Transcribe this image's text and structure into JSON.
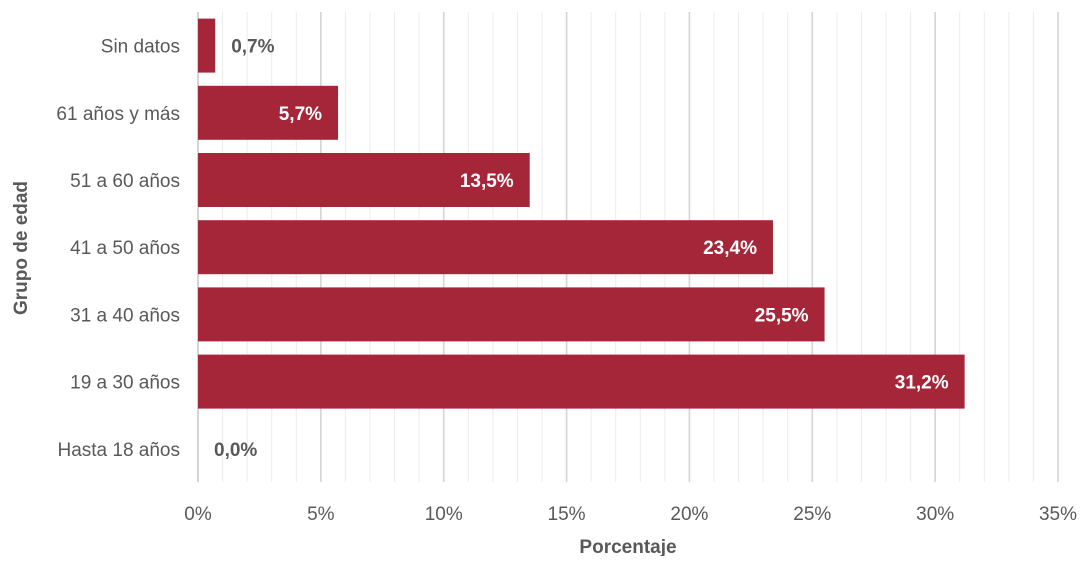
{
  "chart_data": {
    "type": "bar",
    "orientation": "horizontal",
    "categories": [
      "Hasta 18 años",
      "19 a 30 años",
      "31 a 40 años",
      "41 a 50 años",
      "51 a 60 años",
      "61 años y más",
      "Sin datos"
    ],
    "values": [
      0.0,
      31.2,
      25.5,
      23.4,
      13.5,
      5.7,
      0.7
    ],
    "data_labels": [
      "0,0%",
      "31,2%",
      "25,5%",
      "23,4%",
      "13,5%",
      "5,7%",
      "0,7%"
    ],
    "xlabel": "Porcentaje",
    "ylabel": "Grupo de edad",
    "xlim": [
      0,
      35
    ],
    "xticks": [
      0,
      5,
      10,
      15,
      20,
      25,
      30,
      35
    ],
    "xtick_labels": [
      "0%",
      "5%",
      "10%",
      "15%",
      "20%",
      "25%",
      "30%",
      "35%"
    ],
    "grid": true,
    "bar_color": "#A62639",
    "legend": "none"
  }
}
